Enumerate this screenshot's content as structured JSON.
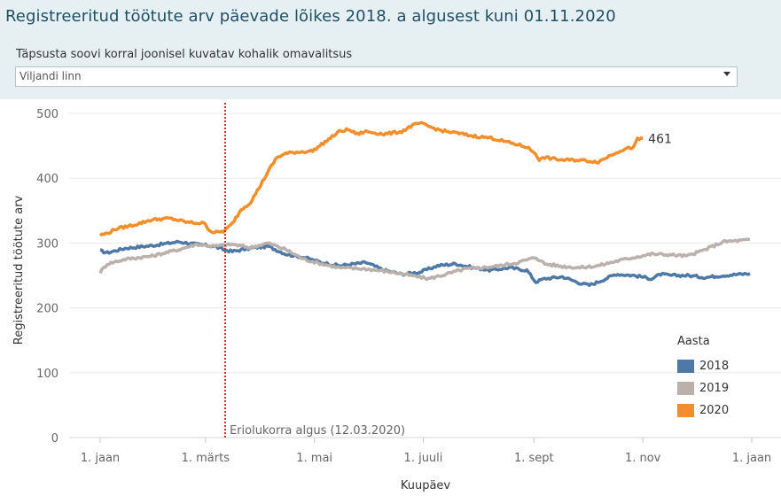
{
  "header": {
    "title": "Registreeritud töötute arv päevade lõikes 2018. a algusest kuni 01.11.2020",
    "filter_label": "Täpsusta soovi korral  joonisel kuvatav kohalik omavalitsus",
    "filter_value": "Viljandi linn"
  },
  "colors": {
    "2018": "#4e79a7",
    "2019": "#bab0ac",
    "2020": "#f28e2b",
    "marker": "#d62728"
  },
  "chart_data": {
    "type": "line",
    "xlabel": "Kuupäev",
    "ylabel": "Registreeritud töötute arv",
    "ylim": [
      0,
      500
    ],
    "yticks": [
      0,
      100,
      200,
      300,
      400,
      500
    ],
    "xlim_day": [
      1,
      365
    ],
    "xticks": [
      {
        "label": "1. jaan",
        "day": 1
      },
      {
        "label": "1. märts",
        "day": 60
      },
      {
        "label": "1. mai",
        "day": 121
      },
      {
        "label": "1. juuli",
        "day": 182
      },
      {
        "label": "1. sept",
        "day": 244
      },
      {
        "label": "1. nov",
        "day": 305
      },
      {
        "label": "1. jaan",
        "day": 366
      }
    ],
    "grid": true,
    "legend": {
      "title": "Aasta",
      "position": "right",
      "entries": [
        "2018",
        "2019",
        "2020"
      ]
    },
    "annotation": {
      "text": "Eriolukorra algus (12.03.2020)",
      "day": 71
    },
    "end_label": {
      "text": "461",
      "series": "2020"
    },
    "series": [
      {
        "name": "2018",
        "days": [
          1,
          5,
          15,
          30,
          45,
          55,
          65,
          70,
          75,
          85,
          95,
          105,
          115,
          125,
          135,
          150,
          160,
          170,
          180,
          190,
          200,
          210,
          220,
          230,
          240,
          245,
          250,
          260,
          270,
          275,
          280,
          290,
          300,
          310,
          315,
          320,
          330,
          340,
          350,
          365
        ],
        "values": [
          288,
          285,
          292,
          296,
          302,
          298,
          295,
          290,
          287,
          292,
          295,
          283,
          278,
          270,
          265,
          270,
          258,
          252,
          255,
          265,
          268,
          262,
          258,
          262,
          258,
          240,
          245,
          248,
          238,
          235,
          240,
          252,
          250,
          245,
          252,
          250,
          250,
          247,
          250,
          253
        ]
      },
      {
        "name": "2019",
        "days": [
          1,
          5,
          15,
          30,
          45,
          55,
          65,
          75,
          85,
          95,
          105,
          115,
          125,
          135,
          150,
          165,
          175,
          185,
          195,
          205,
          215,
          225,
          235,
          245,
          250,
          260,
          270,
          280,
          290,
          300,
          310,
          320,
          330,
          340,
          350,
          365
        ],
        "values": [
          255,
          268,
          275,
          280,
          290,
          298,
          295,
          298,
          293,
          300,
          290,
          275,
          268,
          262,
          260,
          255,
          250,
          245,
          252,
          260,
          262,
          265,
          270,
          278,
          268,
          264,
          262,
          265,
          272,
          278,
          283,
          282,
          280,
          290,
          302,
          305
        ]
      },
      {
        "name": "2020",
        "days": [
          1,
          5,
          10,
          20,
          30,
          40,
          50,
          60,
          62,
          65,
          70,
          72,
          75,
          80,
          85,
          90,
          95,
          100,
          105,
          110,
          120,
          130,
          135,
          140,
          145,
          150,
          160,
          170,
          175,
          180,
          185,
          190,
          195,
          200,
          210,
          220,
          230,
          240,
          245,
          247,
          250,
          260,
          270,
          280,
          290,
          295,
          300,
          302,
          305
        ],
        "values": [
          312,
          315,
          322,
          328,
          336,
          338,
          332,
          330,
          320,
          316,
          318,
          322,
          330,
          352,
          362,
          385,
          410,
          432,
          438,
          440,
          442,
          462,
          472,
          475,
          468,
          472,
          468,
          472,
          480,
          485,
          480,
          475,
          472,
          470,
          465,
          462,
          455,
          448,
          438,
          428,
          432,
          428,
          428,
          425,
          440,
          445,
          448,
          460,
          461
        ]
      }
    ]
  }
}
